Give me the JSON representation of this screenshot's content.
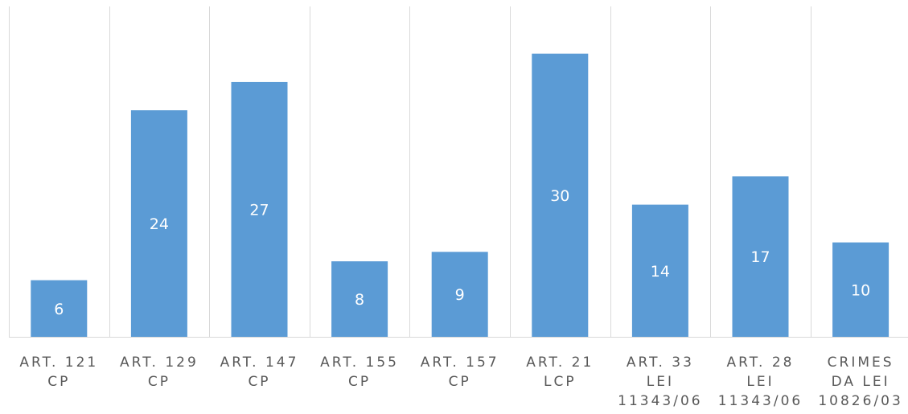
{
  "chart_data": {
    "type": "bar",
    "categories": [
      [
        "ART. 121",
        "CP"
      ],
      [
        "ART. 129",
        "CP"
      ],
      [
        "ART. 147",
        "CP"
      ],
      [
        "ART. 155",
        "CP"
      ],
      [
        "ART. 157",
        "CP"
      ],
      [
        "ART. 21",
        "LCP"
      ],
      [
        "ART. 33",
        "LEI",
        "11343/06"
      ],
      [
        "ART. 28",
        "LEI",
        "11343/06"
      ],
      [
        "CRIMES",
        "DA LEI",
        "10826/03"
      ]
    ],
    "values": [
      6,
      24,
      27,
      8,
      9,
      30,
      14,
      17,
      10
    ],
    "data_labels": [
      "6",
      "24",
      "27",
      "8",
      "9",
      "30",
      "14",
      "17",
      "10"
    ],
    "ylim": [
      0,
      35
    ],
    "grid": "vertical separators",
    "legend": "none",
    "colors": {
      "bar": "#5b9bd5",
      "data_label": "#ffffff",
      "axis_label": "#595959",
      "gridline": "#d9d9d9",
      "background": "#ffffff"
    }
  }
}
